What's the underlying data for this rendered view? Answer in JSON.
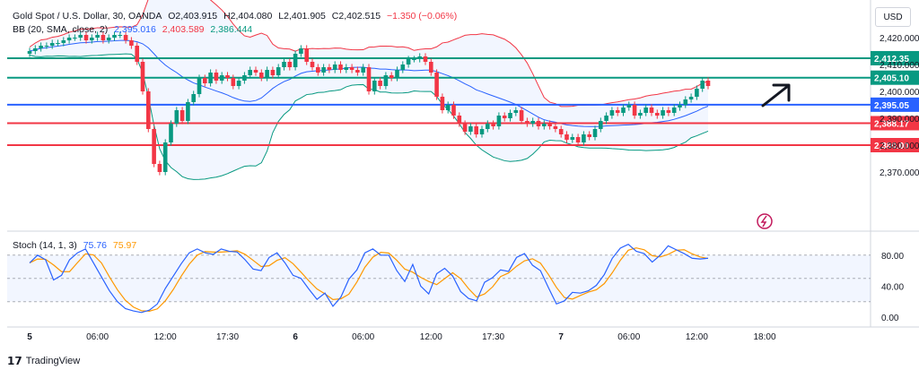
{
  "header": {
    "symbol": "Gold Spot / U.S. Dollar, 30, OANDA",
    "open": "O2,403.915",
    "high": "H2,404.080",
    "low": "L2,401.905",
    "close": "C2,402.515",
    "change": "−1.350 (−0.06%)",
    "bb_label": "BB (20, SMA, close, 2)",
    "bb_basis": "2,395.016",
    "bb_upper": "2,403.589",
    "bb_lower": "2,386.444",
    "stoch_label": "Stoch (14, 1, 3)",
    "stoch_k": "75.76",
    "stoch_d": "75.97"
  },
  "currency": "USD",
  "brand": "TradingView",
  "colors": {
    "up": "#089981",
    "down": "#f23645",
    "bb_upper": "#f23645",
    "bb_basis": "#2962ff",
    "bb_lower": "#089981",
    "stoch_k": "#2962ff",
    "stoch_d": "#ff9800"
  },
  "chart_data": {
    "type": "candlestick",
    "price_axis": {
      "ticks": [
        "2,420.000",
        "2,410.000",
        "2,400.000",
        "2,390.000",
        "2,380.000",
        "2,370.000"
      ],
      "values": [
        2420,
        2410,
        2400,
        2390,
        2380,
        2370
      ]
    },
    "stoch_axis": {
      "ticks": [
        "80.00",
        "40.00",
        "0.00"
      ],
      "values": [
        80,
        40,
        0
      ],
      "band": [
        20,
        80
      ]
    },
    "time_axis": {
      "labels": [
        "5",
        "06:00",
        "12:00",
        "17:30",
        "6",
        "06:00",
        "12:00",
        "17:30",
        "7",
        "06:00",
        "12:00",
        "18:00"
      ],
      "bar_index": [
        0,
        12,
        24,
        35,
        47,
        59,
        71,
        82,
        94,
        106,
        118,
        130
      ]
    },
    "levels": [
      {
        "label": "2,412.35",
        "value": 2412.35,
        "color": "#089981"
      },
      {
        "label": "2,405.10",
        "value": 2405.1,
        "color": "#089981"
      },
      {
        "label": "2,395.05",
        "value": 2395.05,
        "color": "#2962ff"
      },
      {
        "label": "2,388.17",
        "value": 2388.17,
        "color": "#f23645"
      },
      {
        "label": "2,380.00",
        "value": 2380.0,
        "color": "#f23645"
      }
    ],
    "close": [
      2415,
      2416,
      2417,
      2417,
      2418,
      2418,
      2419,
      2420,
      2420,
      2421,
      2419,
      2420,
      2421,
      2419,
      2420,
      2421,
      2421,
      2419,
      2417,
      2411,
      2400,
      2386,
      2373,
      2370,
      2381,
      2388,
      2393,
      2389,
      2396,
      2399,
      2405,
      2403,
      2407,
      2404,
      2406,
      2405,
      2402,
      2404,
      2406,
      2408,
      2407,
      2405,
      2408,
      2406,
      2409,
      2411,
      2409,
      2414,
      2416,
      2411,
      2409,
      2407,
      2409,
      2408,
      2410,
      2408,
      2409,
      2408,
      2407,
      2409,
      2400,
      2404,
      2402,
      2406,
      2405,
      2408,
      2410,
      2412,
      2412,
      2413,
      2411,
      2407,
      2398,
      2393,
      2395,
      2391,
      2388,
      2385,
      2387,
      2384,
      2386,
      2388,
      2387,
      2391,
      2390,
      2392,
      2393,
      2389,
      2388,
      2389,
      2387,
      2388,
      2387,
      2386,
      2384,
      2382,
      2383,
      2381,
      2384,
      2383,
      2386,
      2389,
      2391,
      2393,
      2392,
      2394,
      2395,
      2391,
      2392,
      2394,
      2392,
      2391,
      2393,
      2392,
      2394,
      2395,
      2397,
      2398,
      2401,
      2404,
      2402
    ],
    "stoch_k": [
      70,
      80,
      74,
      48,
      54,
      74,
      83,
      88,
      70,
      52,
      34,
      20,
      11,
      8,
      6,
      9,
      17,
      37,
      53,
      69,
      83,
      88,
      83,
      81,
      88,
      85,
      84,
      74,
      62,
      60,
      77,
      83,
      70,
      54,
      50,
      36,
      23,
      31,
      14,
      26,
      49,
      61,
      83,
      88,
      80,
      80,
      60,
      46,
      68,
      40,
      30,
      56,
      63,
      53,
      33,
      24,
      21,
      45,
      51,
      61,
      59,
      77,
      82,
      67,
      60,
      38,
      17,
      21,
      32,
      31,
      34,
      41,
      55,
      76,
      89,
      94,
      85,
      82,
      71,
      80,
      92,
      87,
      82,
      76,
      75,
      76
    ]
  }
}
